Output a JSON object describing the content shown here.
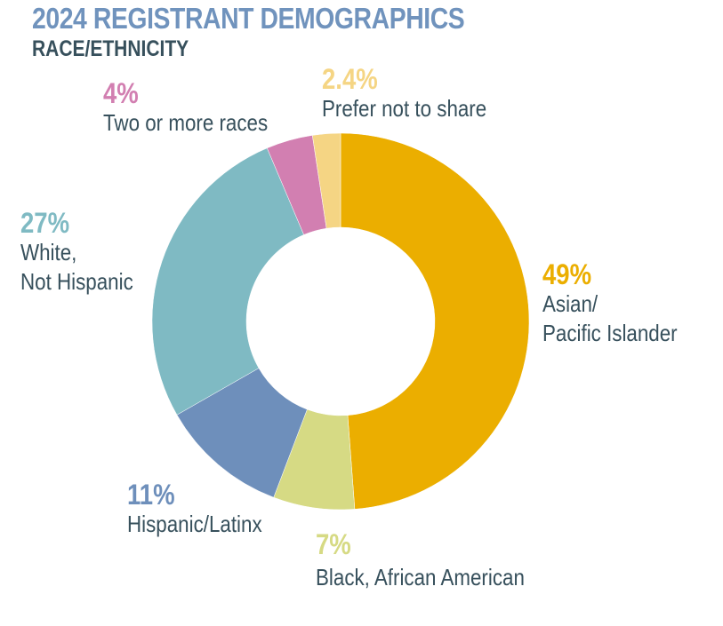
{
  "chart_data": {
    "type": "pie",
    "variant": "donut",
    "title": "2024 REGISTRANT DEMOGRAPHICS",
    "subtitle": "RACE/ETHNICITY",
    "start": "12 o'clock, clockwise",
    "slices": [
      {
        "label": "Asian/\nPacific Islander",
        "label_lines": [
          "Asian/",
          "Pacific Islander"
        ],
        "value": 49,
        "display": "49%",
        "color": "#ebae00"
      },
      {
        "label": "Black, African American",
        "label_lines": [
          "Black, African American"
        ],
        "value": 7,
        "display": "7%",
        "color": "#d6da84"
      },
      {
        "label": "Hispanic/Latinx",
        "label_lines": [
          "Hispanic/Latinx"
        ],
        "value": 11,
        "display": "11%",
        "color": "#6e8fbb"
      },
      {
        "label": "White, Not Hispanic",
        "label_lines": [
          "White,",
          "Not Hispanic"
        ],
        "value": 27,
        "display": "27%",
        "color": "#7fbac3"
      },
      {
        "label": "Two or more races",
        "label_lines": [
          "Two or more races"
        ],
        "value": 4,
        "display": "4%",
        "color": "#d27fb1"
      },
      {
        "label": "Prefer not to share",
        "label_lines": [
          "Prefer not to share"
        ],
        "value": 2.4,
        "display": "2.4%",
        "color": "#f5d584"
      }
    ]
  },
  "colors": {
    "title": "#7093bd",
    "text": "#37505c"
  }
}
